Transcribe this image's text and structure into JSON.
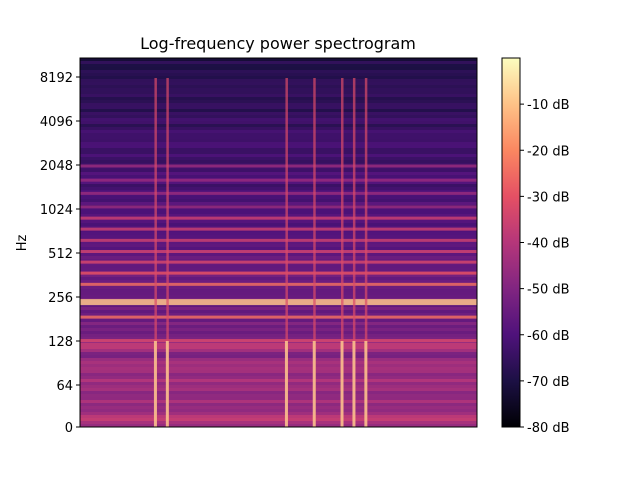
{
  "chart_data": {
    "type": "heatmap",
    "title": "Log-frequency power spectrogram",
    "xlabel": "",
    "ylabel": "Hz",
    "y_scale": "log2 (symlog, linear below 64)",
    "y_ticks": [
      "0",
      "64",
      "128",
      "256",
      "512",
      "1024",
      "2048",
      "4096",
      "8192"
    ],
    "y_tick_values": [
      0,
      64,
      128,
      256,
      512,
      1024,
      2048,
      4096,
      8192
    ],
    "ylim": [
      0,
      11025
    ],
    "x_ticks": [],
    "colormap": "magma",
    "colorbar": {
      "ticks": [
        "-10 dB",
        "-20 dB",
        "-30 dB",
        "-40 dB",
        "-50 dB",
        "-60 dB",
        "-70 dB",
        "-80 dB"
      ],
      "tick_values": [
        -10,
        -20,
        -30,
        -40,
        -50,
        -60,
        -70,
        -80
      ],
      "range": [
        -80,
        0
      ]
    },
    "harmonic_bands_hz": [
      128,
      185,
      240,
      310,
      370,
      440,
      520,
      620,
      740,
      880,
      1050,
      1300,
      1600,
      2000
    ],
    "strongest_band_hz": 240,
    "onset_positions_fraction": [
      0.19,
      0.22,
      0.52,
      0.59,
      0.66,
      0.69,
      0.72
    ],
    "grid": false,
    "legend": "colorbar right"
  },
  "colors": {
    "magma_stops": [
      "#000004",
      "#1c1044",
      "#4f127b",
      "#812581",
      "#b5367a",
      "#e55064",
      "#fb8761",
      "#fec287",
      "#fcfdbf"
    ]
  }
}
